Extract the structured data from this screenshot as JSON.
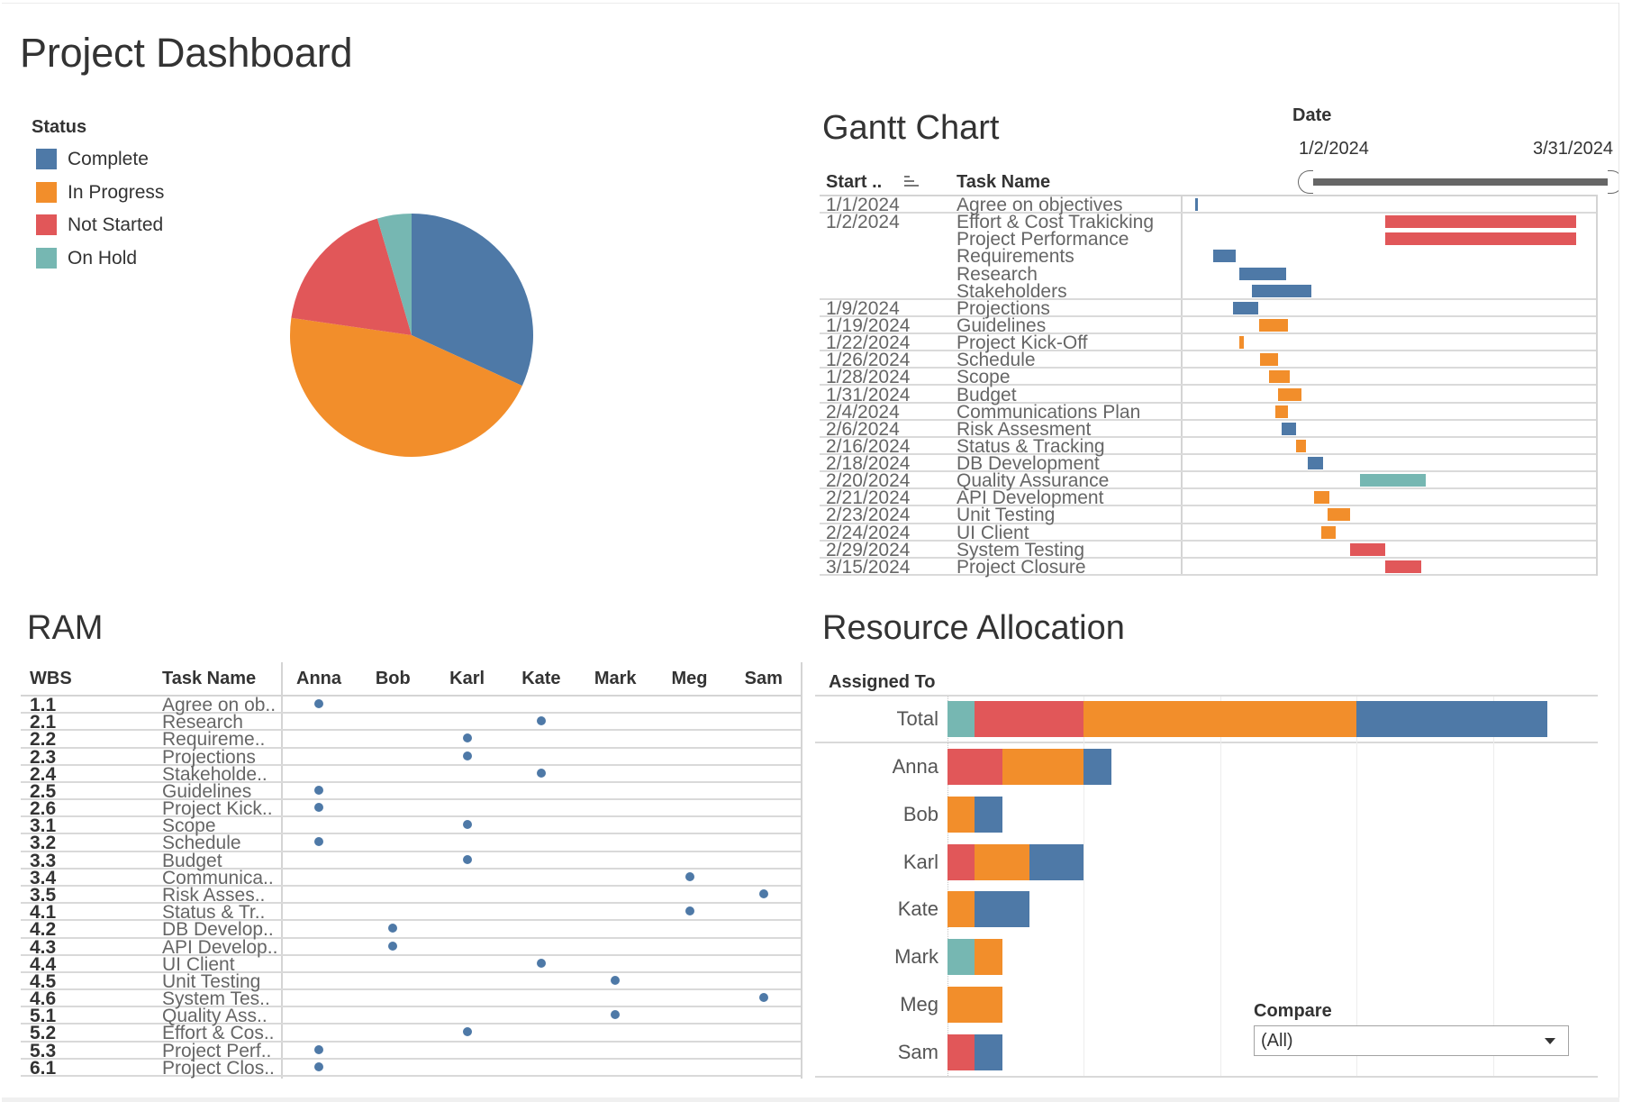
{
  "header": {
    "title": "Project Dashboard"
  },
  "filters": {
    "date": {
      "label": "Date",
      "start": "1/2/2024",
      "end": "3/31/2024",
      "start_fraction": 0,
      "end_fraction": 1
    },
    "compare": {
      "label": "Compare",
      "value": "(All)",
      "icon": "chevron-down-icon"
    }
  },
  "chart_data": [
    {
      "id": "status-pie",
      "type": "pie",
      "title": "",
      "legend": {
        "title": "Status",
        "placement": "left",
        "items": [
          {
            "label": "Complete",
            "color": "#4e79a7"
          },
          {
            "label": "In Progress",
            "color": "#f28e2b"
          },
          {
            "label": "Not Started",
            "color": "#e15759"
          },
          {
            "label": "On Hold",
            "color": "#76b7b2"
          }
        ]
      },
      "categories": [
        "Complete",
        "In Progress",
        "Not Started",
        "On Hold"
      ],
      "values": [
        7,
        10,
        4,
        1
      ],
      "colors": [
        "#4e79a7",
        "#f28e2b",
        "#e15759",
        "#76b7b2"
      ]
    },
    {
      "id": "gantt",
      "type": "bar",
      "subtype": "gantt",
      "title": "Gantt Chart",
      "columns": {
        "start": "Start ..",
        "task": "Task Name"
      },
      "sort_icon": "sort-icon",
      "x_origin_date": "1/1/2024",
      "x_units": "days since 1/1/2024",
      "x_range_days": [
        -4.9,
        156.5
      ],
      "grid": false,
      "groups": [
        {
          "start": "1/1/2024",
          "tasks": [
            {
              "name": "Agree on objectives",
              "status": "Complete",
              "bar": [
                0,
                1.2
              ]
            }
          ]
        },
        {
          "start": "1/2/2024",
          "tasks": [
            {
              "name": "Effort & Cost Trakicking",
              "status": "Not Started",
              "bar": [
                74,
                148.5
              ]
            },
            {
              "name": "Project Performance",
              "status": "Not Started",
              "bar": [
                74,
                148.5
              ]
            },
            {
              "name": "Requirements",
              "status": "Complete",
              "bar": [
                6.9,
                15.8
              ]
            },
            {
              "name": "Research",
              "status": "Complete",
              "bar": [
                17.2,
                35.5
              ]
            },
            {
              "name": "Stakeholders",
              "status": "Complete",
              "bar": [
                22.2,
                45.2
              ]
            }
          ]
        },
        {
          "start": "1/9/2024",
          "tasks": [
            {
              "name": "Projections",
              "status": "Complete",
              "bar": [
                14.6,
                24.7
              ]
            }
          ]
        },
        {
          "start": "1/19/2024",
          "tasks": [
            {
              "name": "Guidelines",
              "status": "In Progress",
              "bar": [
                24.8,
                36.3
              ]
            }
          ]
        },
        {
          "start": "1/22/2024",
          "tasks": [
            {
              "name": "Project Kick-Off",
              "status": "In Progress",
              "bar": [
                17.2,
                18.9
              ]
            }
          ]
        },
        {
          "start": "1/26/2024",
          "tasks": [
            {
              "name": "Schedule",
              "status": "In Progress",
              "bar": [
                25.4,
                32.4
              ]
            }
          ]
        },
        {
          "start": "1/28/2024",
          "tasks": [
            {
              "name": "Scope",
              "status": "In Progress",
              "bar": [
                28.7,
                36.8
              ]
            }
          ]
        },
        {
          "start": "1/31/2024",
          "tasks": [
            {
              "name": "Budget",
              "status": "In Progress",
              "bar": [
                32.4,
                41.3
              ]
            }
          ]
        },
        {
          "start": "2/4/2024",
          "tasks": [
            {
              "name": "Communications Plan",
              "status": "In Progress",
              "bar": [
                31.2,
                36.3
              ]
            }
          ]
        },
        {
          "start": "2/6/2024",
          "tasks": [
            {
              "name": "Risk Assesment",
              "status": "Complete",
              "bar": [
                33.7,
                39.4
              ]
            }
          ]
        },
        {
          "start": "2/16/2024",
          "tasks": [
            {
              "name": "Status & Tracking",
              "status": "In Progress",
              "bar": [
                39.4,
                43.3
              ]
            }
          ]
        },
        {
          "start": "2/18/2024",
          "tasks": [
            {
              "name": "DB Development",
              "status": "Complete",
              "bar": [
                44,
                49.7
              ]
            }
          ]
        },
        {
          "start": "2/20/2024",
          "tasks": [
            {
              "name": "Quality Assurance",
              "status": "On Hold",
              "bar": [
                64.3,
                89.8
              ]
            }
          ]
        },
        {
          "start": "2/21/2024",
          "tasks": [
            {
              "name": "API Development",
              "status": "In Progress",
              "bar": [
                46.4,
                52.2
              ]
            }
          ]
        },
        {
          "start": "2/23/2024",
          "tasks": [
            {
              "name": "Unit Testing",
              "status": "In Progress",
              "bar": [
                51.6,
                60.5
              ]
            }
          ]
        },
        {
          "start": "2/24/2024",
          "tasks": [
            {
              "name": "UI Client",
              "status": "In Progress",
              "bar": [
                49,
                54.7
              ]
            }
          ]
        },
        {
          "start": "2/29/2024",
          "tasks": [
            {
              "name": "System Testing",
              "status": "Not Started",
              "bar": [
                60.5,
                74
              ]
            }
          ]
        },
        {
          "start": "3/15/2024",
          "tasks": [
            {
              "name": "Project Closure",
              "status": "Not Started",
              "bar": [
                74,
                88
              ]
            }
          ]
        }
      ]
    },
    {
      "id": "ram",
      "type": "table",
      "title": "RAM",
      "columns": {
        "wbs": "WBS",
        "task": "Task Name"
      },
      "people": [
        "Anna",
        "Bob",
        "Karl",
        "Kate",
        "Mark",
        "Meg",
        "Sam"
      ],
      "marker_color": "#4e79a7",
      "rows": [
        {
          "wbs": "1.1",
          "task": "Agree on ob..",
          "assigned": "Anna"
        },
        {
          "wbs": "2.1",
          "task": "Research",
          "assigned": "Kate"
        },
        {
          "wbs": "2.2",
          "task": "Requireme..",
          "assigned": "Karl"
        },
        {
          "wbs": "2.3",
          "task": "Projections",
          "assigned": "Karl"
        },
        {
          "wbs": "2.4",
          "task": "Stakeholde..",
          "assigned": "Kate"
        },
        {
          "wbs": "2.5",
          "task": "Guidelines",
          "assigned": "Anna"
        },
        {
          "wbs": "2.6",
          "task": "Project Kick..",
          "assigned": "Anna"
        },
        {
          "wbs": "3.1",
          "task": "Scope",
          "assigned": "Karl"
        },
        {
          "wbs": "3.2",
          "task": "Schedule",
          "assigned": "Anna"
        },
        {
          "wbs": "3.3",
          "task": "Budget",
          "assigned": "Karl"
        },
        {
          "wbs": "3.4",
          "task": "Communica..",
          "assigned": "Meg"
        },
        {
          "wbs": "3.5",
          "task": "Risk Asses..",
          "assigned": "Sam"
        },
        {
          "wbs": "4.1",
          "task": "Status & Tr..",
          "assigned": "Meg"
        },
        {
          "wbs": "4.2",
          "task": "DB Develop..",
          "assigned": "Bob"
        },
        {
          "wbs": "4.3",
          "task": "API Develop..",
          "assigned": "Bob"
        },
        {
          "wbs": "4.4",
          "task": "UI Client",
          "assigned": "Kate"
        },
        {
          "wbs": "4.5",
          "task": "Unit Testing",
          "assigned": "Mark"
        },
        {
          "wbs": "4.6",
          "task": "System Tes..",
          "assigned": "Sam"
        },
        {
          "wbs": "5.1",
          "task": "Quality Ass..",
          "assigned": "Mark"
        },
        {
          "wbs": "5.2",
          "task": "Effort & Cos..",
          "assigned": "Karl"
        },
        {
          "wbs": "5.3",
          "task": "Project Perf..",
          "assigned": "Anna"
        },
        {
          "wbs": "6.1",
          "task": "Project Clos..",
          "assigned": "Anna"
        }
      ]
    },
    {
      "id": "resource-allocation",
      "type": "bar",
      "orientation": "horizontal",
      "stacked": true,
      "title": "Resource Allocation",
      "ylabel": "Assigned To",
      "xlabel": "",
      "categories": [
        "Total",
        "Anna",
        "Bob",
        "Karl",
        "Kate",
        "Mark",
        "Meg",
        "Sam"
      ],
      "series": [
        {
          "name": "On Hold",
          "color": "#76b7b2",
          "values": [
            1,
            0,
            0,
            0,
            0,
            1,
            0,
            0
          ]
        },
        {
          "name": "Not Started",
          "color": "#e15759",
          "values": [
            4,
            2,
            0,
            1,
            0,
            0,
            0,
            1
          ]
        },
        {
          "name": "In Progress",
          "color": "#f28e2b",
          "values": [
            10,
            3,
            1,
            2,
            1,
            1,
            2,
            0
          ]
        },
        {
          "name": "Complete",
          "color": "#4e79a7",
          "values": [
            7,
            1,
            1,
            2,
            2,
            0,
            0,
            1
          ]
        }
      ],
      "xlim": [
        0,
        23.8
      ],
      "gridlines": [
        5,
        10,
        15,
        20
      ],
      "grid": true
    }
  ]
}
